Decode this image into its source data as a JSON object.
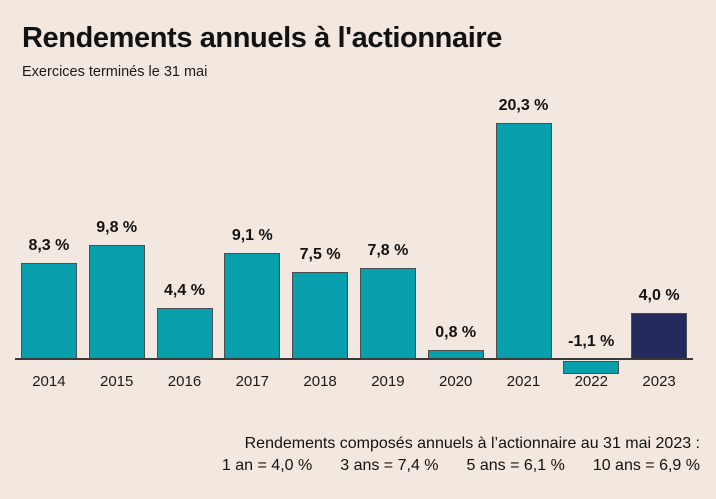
{
  "title": "Rendements annuels à l'actionnaire",
  "subtitle": "Exercices terminés le 31 mai",
  "chart_data": {
    "type": "bar",
    "title": "Rendements annuels à l'actionnaire",
    "subtitle": "Exercices terminés le 31 mai",
    "categories": [
      "2014",
      "2015",
      "2016",
      "2017",
      "2018",
      "2019",
      "2020",
      "2021",
      "2022",
      "2023"
    ],
    "values": [
      8.3,
      9.8,
      4.4,
      9.1,
      7.5,
      7.8,
      0.8,
      20.3,
      -1.1,
      4.0
    ],
    "value_labels": [
      "8,3 %",
      "9,8 %",
      "4,4 %",
      "9,1 %",
      "7,5 %",
      "7,8 %",
      "0,8 %",
      "20,3 %",
      "-1,1 %",
      "4,0 %"
    ],
    "xlabel": "",
    "ylabel": "",
    "ylim": [
      -2,
      22
    ],
    "grid": false,
    "legend": "none",
    "highlight_index": 9,
    "colors": {
      "default": "#089fad",
      "highlight": "#242b5c",
      "background": "#f2e8df",
      "axis": "#3a3a3a",
      "text": "#121212"
    }
  },
  "footer": {
    "line1": "Rendements composés annuels à l’actionnaire au 31 mai 2023 :",
    "line2_items": [
      "1 an = 4,0 %",
      "3 ans = 7,4 %",
      "5 ans = 6,1 %",
      "10 ans = 6,9 %"
    ]
  }
}
